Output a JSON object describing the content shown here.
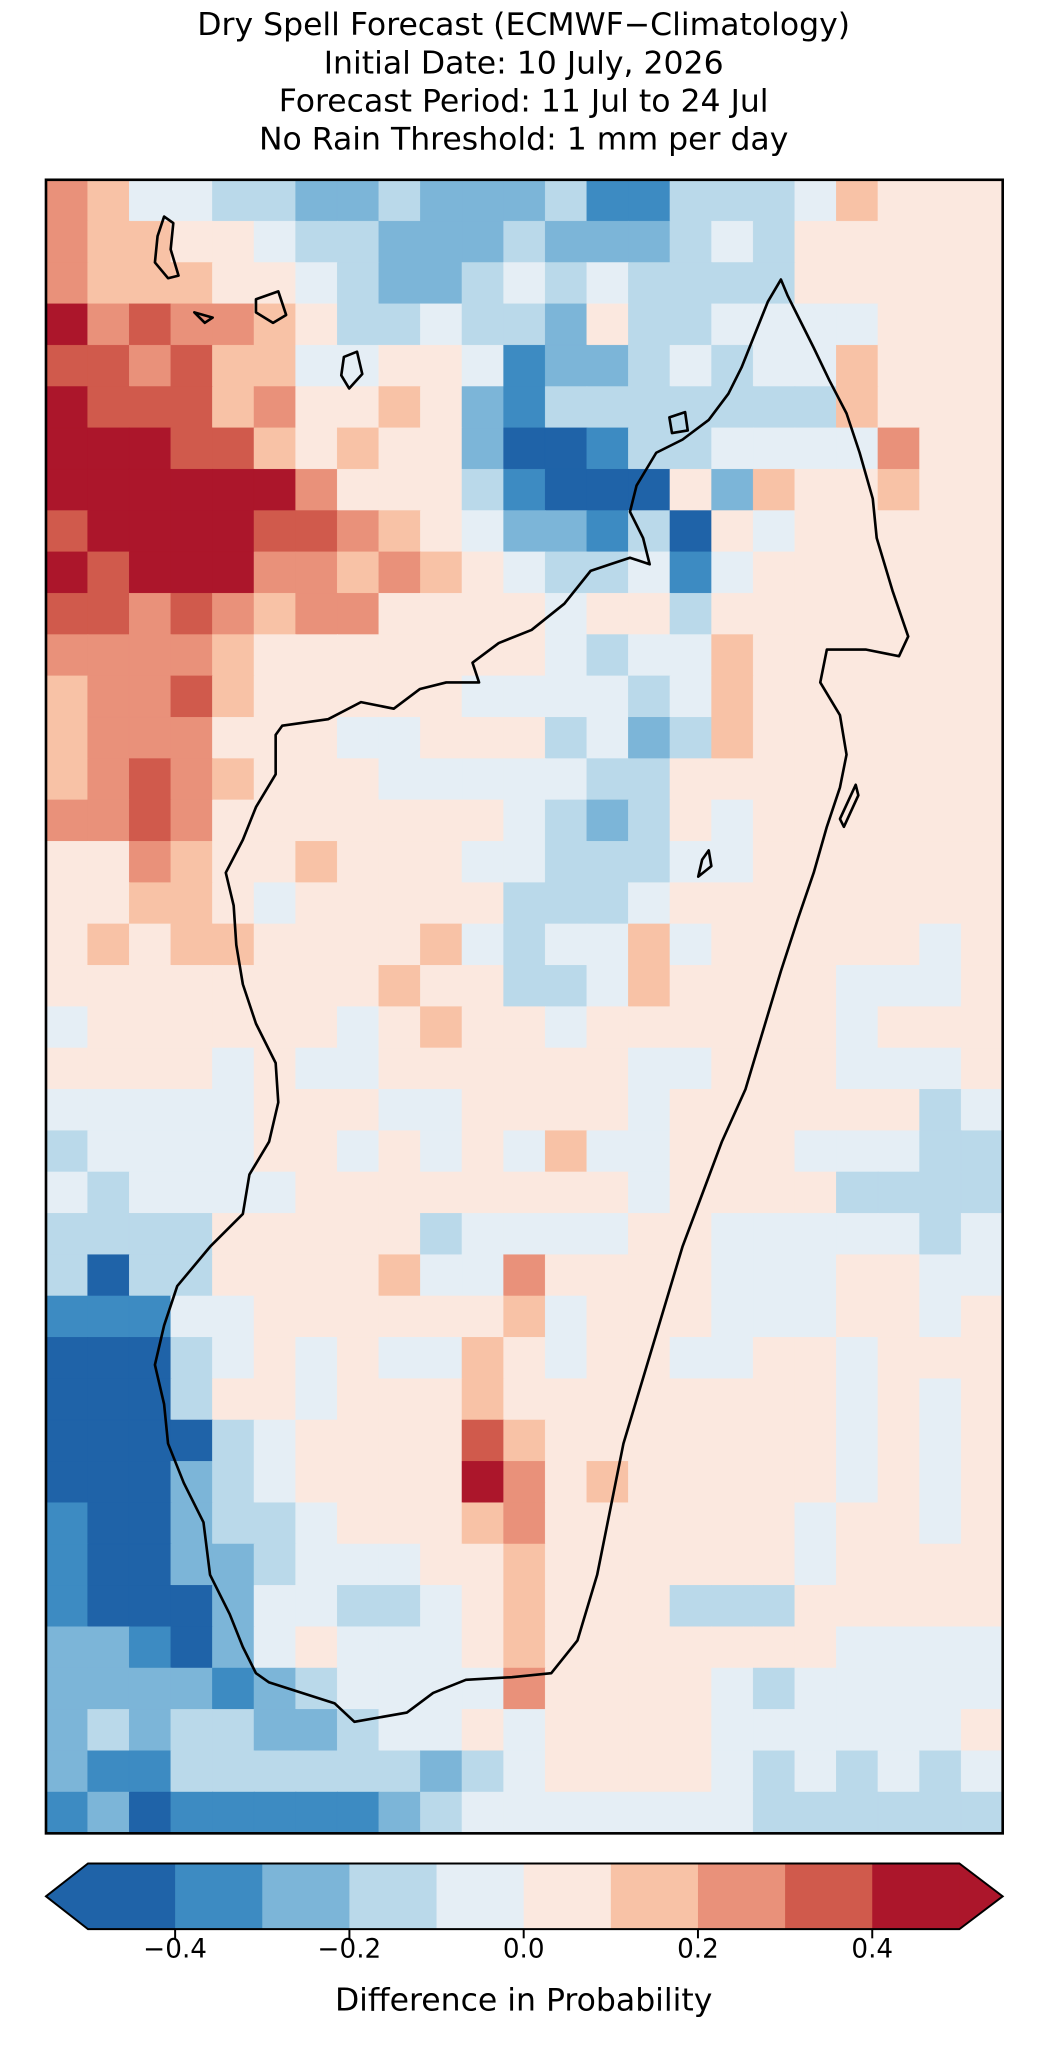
{
  "chart_data": {
    "type": "heatmap",
    "title": [
      "Dry Spell Forecast (ECMWF−Climatology)",
      "Initial Date: 10 July, 2026",
      "Forecast Period: 11 Jul to 24 Jul",
      "No Rain Threshold: 1 mm per day"
    ],
    "z": [
      [
        0.25,
        0.15,
        -0.05,
        -0.05,
        -0.15,
        -0.15,
        -0.25,
        -0.25,
        -0.15,
        -0.25,
        -0.25,
        -0.25,
        -0.15,
        -0.35,
        -0.35,
        -0.15,
        -0.15,
        -0.15,
        -0.05,
        0.15,
        0.05,
        0.05,
        0.05
      ],
      [
        0.25,
        0.15,
        0.15,
        0.05,
        0.05,
        -0.05,
        -0.15,
        -0.15,
        -0.25,
        -0.25,
        -0.25,
        -0.15,
        -0.25,
        -0.25,
        -0.25,
        -0.15,
        -0.05,
        -0.15,
        0.05,
        0.05,
        0.05,
        0.05,
        0.05
      ],
      [
        0.25,
        0.15,
        0.15,
        0.15,
        0.05,
        0.05,
        -0.05,
        -0.15,
        -0.25,
        -0.25,
        -0.15,
        -0.05,
        -0.15,
        -0.05,
        -0.15,
        -0.15,
        -0.15,
        -0.15,
        0.05,
        0.05,
        0.05,
        0.05,
        0.05
      ],
      [
        0.45,
        0.25,
        0.35,
        0.25,
        0.25,
        0.15,
        0.05,
        -0.15,
        -0.15,
        -0.05,
        -0.15,
        -0.15,
        -0.25,
        0.05,
        -0.15,
        -0.15,
        -0.05,
        -0.05,
        -0.05,
        -0.05,
        0.05,
        0.05,
        0.05
      ],
      [
        0.35,
        0.35,
        0.25,
        0.35,
        0.15,
        0.15,
        -0.05,
        -0.05,
        0.05,
        0.05,
        -0.05,
        -0.35,
        -0.25,
        -0.25,
        -0.15,
        -0.05,
        -0.15,
        -0.05,
        -0.05,
        0.15,
        0.05,
        0.05,
        0.05
      ],
      [
        0.45,
        0.35,
        0.35,
        0.35,
        0.15,
        0.25,
        0.05,
        0.05,
        0.15,
        0.05,
        -0.25,
        -0.35,
        -0.15,
        -0.15,
        -0.15,
        -0.15,
        -0.15,
        -0.15,
        -0.15,
        0.15,
        0.05,
        0.05,
        0.05
      ],
      [
        0.45,
        0.45,
        0.45,
        0.35,
        0.35,
        0.15,
        0.05,
        0.15,
        0.05,
        0.05,
        -0.25,
        -0.45,
        -0.45,
        -0.35,
        -0.15,
        -0.15,
        -0.05,
        -0.05,
        -0.05,
        -0.05,
        0.25,
        0.05,
        0.05
      ],
      [
        0.45,
        0.45,
        0.45,
        0.45,
        0.45,
        0.45,
        0.25,
        0.05,
        0.05,
        0.05,
        -0.15,
        -0.35,
        -0.45,
        -0.45,
        -0.45,
        0.05,
        -0.25,
        0.15,
        0.05,
        0.05,
        0.15,
        0.05,
        0.05
      ],
      [
        0.35,
        0.45,
        0.45,
        0.45,
        0.45,
        0.35,
        0.35,
        0.25,
        0.15,
        0.05,
        -0.05,
        -0.25,
        -0.25,
        -0.35,
        -0.15,
        -0.45,
        0.05,
        -0.05,
        0.05,
        0.05,
        0.05,
        0.05,
        0.05
      ],
      [
        0.45,
        0.35,
        0.45,
        0.45,
        0.45,
        0.25,
        0.25,
        0.15,
        0.25,
        0.15,
        0.05,
        -0.05,
        -0.15,
        -0.15,
        -0.05,
        -0.35,
        -0.05,
        0.05,
        0.05,
        0.05,
        0.05,
        0.05,
        0.05
      ],
      [
        0.35,
        0.35,
        0.25,
        0.35,
        0.25,
        0.15,
        0.25,
        0.25,
        0.05,
        0.05,
        0.05,
        0.05,
        -0.05,
        0.05,
        0.05,
        -0.15,
        0.05,
        0.05,
        0.05,
        0.05,
        0.05,
        0.05,
        0.05
      ],
      [
        0.25,
        0.25,
        0.25,
        0.25,
        0.15,
        0.05,
        0.05,
        0.05,
        0.05,
        0.05,
        0.05,
        0.05,
        -0.05,
        -0.15,
        -0.05,
        -0.05,
        0.15,
        0.05,
        0.05,
        0.05,
        0.05,
        0.05,
        0.05
      ],
      [
        0.15,
        0.25,
        0.25,
        0.35,
        0.15,
        0.05,
        0.05,
        0.05,
        0.05,
        0.05,
        -0.05,
        -0.05,
        -0.05,
        -0.05,
        -0.15,
        -0.05,
        0.15,
        0.05,
        0.05,
        0.05,
        0.05,
        0.05,
        0.05
      ],
      [
        0.15,
        0.25,
        0.25,
        0.25,
        0.05,
        0.05,
        0.05,
        -0.05,
        -0.05,
        0.05,
        0.05,
        0.05,
        -0.15,
        -0.05,
        -0.25,
        -0.15,
        0.15,
        0.05,
        0.05,
        0.05,
        0.05,
        0.05,
        0.05
      ],
      [
        0.15,
        0.25,
        0.35,
        0.25,
        0.15,
        0.05,
        0.05,
        0.05,
        -0.05,
        -0.05,
        -0.05,
        -0.05,
        -0.05,
        -0.15,
        -0.15,
        0.05,
        0.05,
        0.05,
        0.05,
        0.05,
        0.05,
        0.05,
        0.05
      ],
      [
        0.25,
        0.25,
        0.35,
        0.25,
        0.05,
        0.05,
        0.05,
        0.05,
        0.05,
        0.05,
        0.05,
        -0.05,
        -0.15,
        -0.25,
        -0.15,
        0.05,
        -0.05,
        0.05,
        0.05,
        0.05,
        0.05,
        0.05,
        0.05
      ],
      [
        0.05,
        0.05,
        0.25,
        0.15,
        0.05,
        0.05,
        0.15,
        0.05,
        0.05,
        0.05,
        -0.05,
        -0.05,
        -0.15,
        -0.15,
        -0.15,
        -0.05,
        -0.05,
        0.05,
        0.05,
        0.05,
        0.05,
        0.05,
        0.05
      ],
      [
        0.05,
        0.05,
        0.15,
        0.15,
        0.05,
        -0.05,
        0.05,
        0.05,
        0.05,
        0.05,
        0.05,
        -0.15,
        -0.15,
        -0.15,
        -0.05,
        0.05,
        0.05,
        0.05,
        0.05,
        0.05,
        0.05,
        0.05,
        0.05
      ],
      [
        0.05,
        0.15,
        0.05,
        0.15,
        0.15,
        0.05,
        0.05,
        0.05,
        0.05,
        0.15,
        -0.05,
        -0.15,
        -0.05,
        -0.05,
        0.15,
        -0.05,
        0.05,
        0.05,
        0.05,
        0.05,
        0.05,
        -0.05,
        0.05
      ],
      [
        0.05,
        0.05,
        0.05,
        0.05,
        0.05,
        0.05,
        0.05,
        0.05,
        0.15,
        0.05,
        0.05,
        -0.15,
        -0.15,
        -0.05,
        0.15,
        0.05,
        0.05,
        0.05,
        0.05,
        -0.05,
        -0.05,
        -0.05,
        0.05
      ],
      [
        -0.05,
        0.05,
        0.05,
        0.05,
        0.05,
        0.05,
        0.05,
        -0.05,
        0.05,
        0.15,
        0.05,
        0.05,
        -0.05,
        0.05,
        0.05,
        0.05,
        0.05,
        0.05,
        0.05,
        -0.05,
        0.05,
        0.05,
        0.05
      ],
      [
        0.05,
        0.05,
        0.05,
        0.05,
        -0.05,
        0.05,
        -0.05,
        -0.05,
        0.05,
        0.05,
        0.05,
        0.05,
        0.05,
        0.05,
        -0.05,
        -0.05,
        0.05,
        0.05,
        0.05,
        -0.05,
        -0.05,
        -0.05,
        0.05
      ],
      [
        -0.05,
        -0.05,
        -0.05,
        -0.05,
        -0.05,
        0.05,
        0.05,
        0.05,
        -0.05,
        -0.05,
        0.05,
        0.05,
        0.05,
        0.05,
        -0.05,
        0.05,
        0.05,
        0.05,
        0.05,
        0.05,
        0.05,
        -0.15,
        -0.05
      ],
      [
        -0.15,
        -0.05,
        -0.05,
        -0.05,
        -0.05,
        0.05,
        0.05,
        -0.05,
        0.05,
        -0.05,
        0.05,
        -0.05,
        0.15,
        -0.05,
        -0.05,
        0.05,
        0.05,
        0.05,
        -0.05,
        -0.05,
        -0.05,
        -0.15,
        -0.15
      ],
      [
        -0.05,
        -0.15,
        -0.05,
        -0.05,
        -0.05,
        -0.05,
        0.05,
        0.05,
        0.05,
        0.05,
        0.05,
        0.05,
        0.05,
        0.05,
        -0.05,
        0.05,
        0.05,
        0.05,
        0.05,
        -0.15,
        -0.15,
        -0.15,
        -0.15
      ],
      [
        -0.15,
        -0.15,
        -0.15,
        -0.15,
        0.05,
        0.05,
        0.05,
        0.05,
        0.05,
        -0.15,
        -0.05,
        -0.05,
        -0.05,
        -0.05,
        0.05,
        0.05,
        -0.05,
        -0.05,
        -0.05,
        -0.05,
        -0.05,
        -0.15,
        -0.05
      ],
      [
        -0.15,
        -0.45,
        -0.15,
        -0.15,
        0.05,
        0.05,
        0.05,
        0.05,
        0.15,
        -0.05,
        -0.05,
        0.25,
        0.05,
        0.05,
        0.05,
        0.05,
        -0.05,
        -0.05,
        -0.05,
        0.05,
        0.05,
        -0.05,
        -0.05
      ],
      [
        -0.35,
        -0.35,
        -0.35,
        -0.05,
        -0.05,
        0.05,
        0.05,
        0.05,
        0.05,
        0.05,
        0.05,
        0.15,
        -0.05,
        0.05,
        0.05,
        0.05,
        -0.05,
        -0.05,
        -0.05,
        0.05,
        0.05,
        -0.05,
        0.05
      ],
      [
        -0.45,
        -0.45,
        -0.45,
        -0.15,
        -0.05,
        0.05,
        -0.05,
        0.05,
        -0.05,
        -0.05,
        0.15,
        0.05,
        -0.05,
        0.05,
        0.05,
        -0.05,
        -0.05,
        0.05,
        0.05,
        -0.05,
        0.05,
        0.05,
        0.05
      ],
      [
        -0.45,
        -0.45,
        -0.45,
        -0.15,
        0.05,
        0.05,
        -0.05,
        0.05,
        0.05,
        0.05,
        0.15,
        0.05,
        0.05,
        0.05,
        0.05,
        0.05,
        0.05,
        0.05,
        0.05,
        -0.05,
        0.05,
        -0.05,
        0.05
      ],
      [
        -0.45,
        -0.45,
        -0.45,
        -0.45,
        -0.15,
        -0.05,
        0.05,
        0.05,
        0.05,
        0.05,
        0.35,
        0.15,
        0.05,
        0.05,
        0.05,
        0.05,
        0.05,
        0.05,
        0.05,
        -0.05,
        0.05,
        -0.05,
        0.05
      ],
      [
        -0.45,
        -0.45,
        -0.45,
        -0.25,
        -0.15,
        -0.05,
        0.05,
        0.05,
        0.05,
        0.05,
        0.45,
        0.25,
        0.05,
        0.15,
        0.05,
        0.05,
        0.05,
        0.05,
        0.05,
        -0.05,
        0.05,
        -0.05,
        0.05
      ],
      [
        -0.35,
        -0.45,
        -0.45,
        -0.25,
        -0.15,
        -0.15,
        -0.05,
        0.05,
        0.05,
        0.05,
        0.15,
        0.25,
        0.05,
        0.05,
        0.05,
        0.05,
        0.05,
        0.05,
        -0.05,
        0.05,
        0.05,
        -0.05,
        0.05
      ],
      [
        -0.35,
        -0.45,
        -0.45,
        -0.25,
        -0.25,
        -0.15,
        -0.05,
        -0.05,
        -0.05,
        0.05,
        0.05,
        0.15,
        0.05,
        0.05,
        0.05,
        0.05,
        0.05,
        0.05,
        -0.05,
        0.05,
        0.05,
        0.05,
        0.05
      ],
      [
        -0.35,
        -0.45,
        -0.45,
        -0.45,
        -0.25,
        -0.05,
        -0.05,
        -0.15,
        -0.15,
        -0.05,
        0.05,
        0.15,
        0.05,
        0.05,
        0.05,
        -0.15,
        -0.15,
        -0.15,
        0.05,
        0.05,
        0.05,
        0.05,
        0.05
      ],
      [
        -0.25,
        -0.25,
        -0.35,
        -0.45,
        -0.25,
        -0.05,
        0.05,
        -0.05,
        -0.05,
        -0.05,
        0.05,
        0.15,
        0.05,
        0.05,
        0.05,
        0.05,
        0.05,
        0.05,
        0.05,
        -0.05,
        -0.05,
        -0.05,
        -0.05
      ],
      [
        -0.25,
        -0.25,
        -0.25,
        -0.25,
        -0.35,
        -0.25,
        -0.15,
        -0.05,
        -0.05,
        -0.05,
        -0.05,
        0.25,
        0.05,
        0.05,
        0.05,
        0.05,
        -0.05,
        -0.15,
        -0.05,
        -0.05,
        -0.05,
        -0.05,
        -0.05
      ],
      [
        -0.25,
        -0.15,
        -0.25,
        -0.15,
        -0.15,
        -0.25,
        -0.25,
        -0.15,
        -0.05,
        -0.05,
        0.05,
        -0.05,
        0.05,
        0.05,
        0.05,
        0.05,
        -0.05,
        -0.05,
        -0.05,
        -0.05,
        -0.05,
        -0.05,
        0.05
      ],
      [
        -0.25,
        -0.35,
        -0.35,
        -0.15,
        -0.15,
        -0.15,
        -0.15,
        -0.15,
        -0.15,
        -0.25,
        -0.15,
        -0.05,
        0.05,
        0.05,
        0.05,
        0.05,
        -0.05,
        -0.15,
        -0.05,
        -0.15,
        -0.05,
        -0.15,
        -0.05
      ],
      [
        -0.35,
        -0.25,
        -0.45,
        -0.35,
        -0.35,
        -0.35,
        -0.35,
        -0.35,
        -0.25,
        -0.15,
        -0.05,
        -0.05,
        -0.05,
        -0.05,
        -0.05,
        -0.05,
        -0.05,
        -0.15,
        -0.15,
        -0.15,
        -0.15,
        -0.15,
        -0.15
      ]
    ],
    "colorbar": {
      "label": "Difference in Probability",
      "levels": [
        -0.5,
        -0.4,
        -0.3,
        -0.2,
        -0.1,
        0,
        0.1,
        0.2,
        0.3,
        0.4,
        0.5
      ],
      "colors": [
        "#1f63a8",
        "#3d8bc2",
        "#7cb5d8",
        "#bad9ea",
        "#e5eef5",
        "#fbe8df",
        "#f8c2a6",
        "#e9917a",
        "#d05a4c",
        "#ac162b"
      ],
      "extend": "both",
      "ticks": [
        {
          "value": -0.4,
          "label": "−0.4"
        },
        {
          "value": -0.2,
          "label": "−0.2"
        },
        {
          "value": 0,
          "label": "0.0"
        },
        0.2,
        0.4
      ]
    }
  }
}
